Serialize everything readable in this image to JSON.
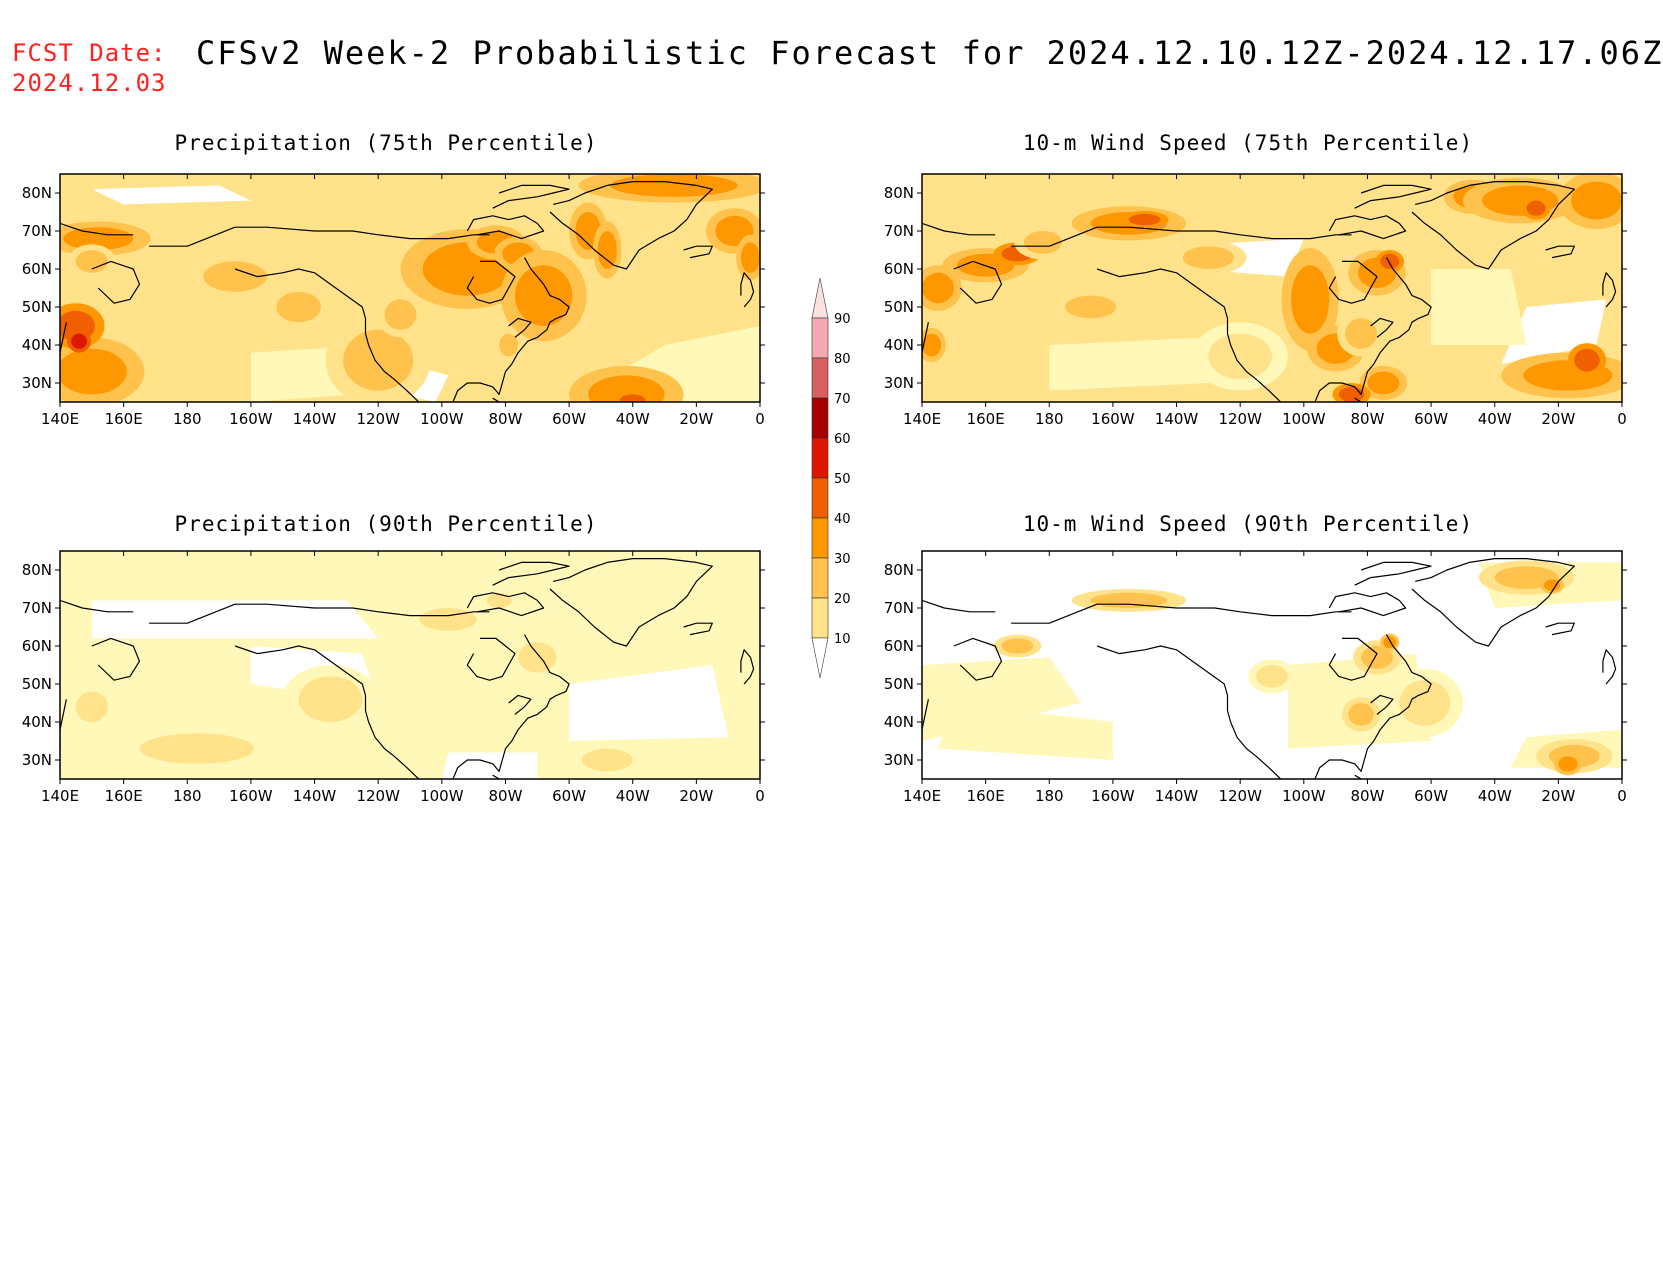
{
  "header": {
    "fcst_label": "FCST Date:",
    "fcst_date": "2024.12.03",
    "title": "CFSv2 Week-2 Probabilistic Forecast for 2024.12.10.12Z-2024.12.17.06Z"
  },
  "colors": {
    "fcst_text": "#ff2020",
    "levels": [
      "#ffffff",
      "#fff8b8",
      "#ffe28a",
      "#ffc24d",
      "#ff9800",
      "#f06000",
      "#dd1800",
      "#a80000",
      "#d96060",
      "#f5a8b0",
      "#fde0e0"
    ]
  },
  "panels": [
    {
      "id": "precip-75",
      "title": "Precipitation (75th Percentile)"
    },
    {
      "id": "wind-75",
      "title": "10-m Wind Speed (75th Percentile)"
    },
    {
      "id": "precip-90",
      "title": "Precipitation (90th Percentile)"
    },
    {
      "id": "wind-90",
      "title": "10-m Wind Speed (90th Percentile)"
    }
  ],
  "axes": {
    "lon_labels": [
      "140E",
      "160E",
      "180",
      "160W",
      "140W",
      "120W",
      "100W",
      "80W",
      "60W",
      "40W",
      "20W",
      "0"
    ],
    "lat_labels": [
      "80N",
      "70N",
      "60N",
      "50N",
      "40N",
      "30N"
    ],
    "lon_range_deg": [
      140,
      360
    ],
    "lat_range_deg": [
      25,
      85
    ]
  },
  "colorbar": {
    "levels": [
      10,
      20,
      30,
      40,
      50,
      60,
      70,
      80,
      90
    ],
    "labels": [
      "10",
      "20",
      "30",
      "40",
      "50",
      "60",
      "70",
      "80",
      "90"
    ]
  }
}
